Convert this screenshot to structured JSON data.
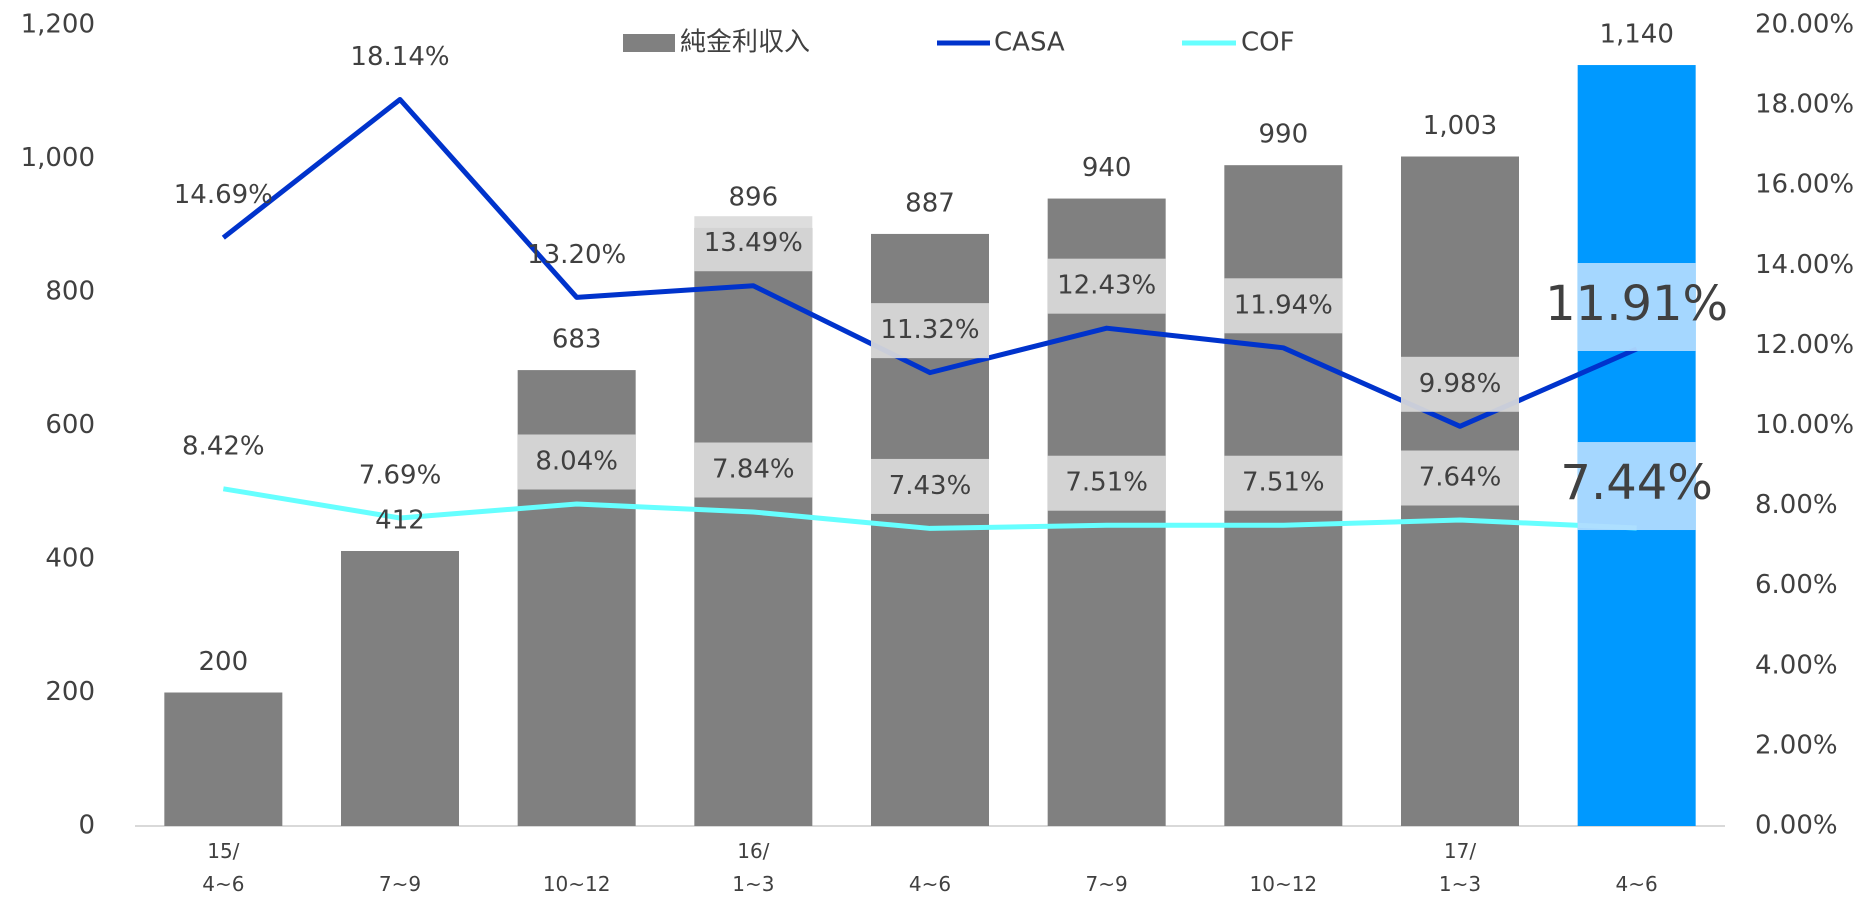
{
  "chart_data": {
    "type": "bar",
    "categories": [
      "15/\n4~6",
      "7~9",
      "10~12",
      "16/\n1~3",
      "4~6",
      "7~9",
      "10~12",
      "17/\n1~3",
      "4~6"
    ],
    "series": [
      {
        "name": "純金利収入",
        "type": "bar",
        "color": "#808080",
        "colors": [
          "#808080",
          "#808080",
          "#808080",
          "#808080",
          "#808080",
          "#808080",
          "#808080",
          "#808080",
          "#0099ff"
        ],
        "values": [
          200,
          412,
          683,
          896,
          887,
          940,
          990,
          1003,
          1140
        ],
        "value_labels": [
          "200",
          "412",
          "683",
          "896",
          "887",
          "940",
          "990",
          "1,003",
          "1,140"
        ]
      },
      {
        "name": "CASA",
        "type": "line",
        "axis": "y2",
        "color": "#0033cc",
        "values": [
          14.69,
          18.14,
          13.2,
          13.49,
          11.32,
          12.43,
          11.94,
          9.98,
          11.91
        ],
        "value_labels": [
          "14.69%",
          "18.14%",
          "13.20%",
          "13.49%",
          "11.32%",
          "12.43%",
          "11.94%",
          "9.98%",
          "11.91%"
        ],
        "label_box": [
          false,
          false,
          false,
          true,
          true,
          true,
          true,
          true,
          true
        ]
      },
      {
        "name": "COF",
        "type": "line",
        "axis": "y2",
        "color": "#66ffff",
        "values": [
          8.42,
          7.69,
          8.04,
          7.84,
          7.43,
          7.51,
          7.51,
          7.64,
          7.44
        ],
        "value_labels": [
          "8.42%",
          "7.69%",
          "8.04%",
          "7.84%",
          "7.43%",
          "7.51%",
          "7.51%",
          "7.64%",
          "7.44%"
        ],
        "label_box": [
          false,
          false,
          true,
          true,
          true,
          true,
          true,
          true,
          true
        ]
      }
    ],
    "ylim": [
      0,
      1200
    ],
    "yticks": [
      0,
      200,
      400,
      600,
      800,
      {
        "value": 1000,
        "label": "1,000"
      },
      {
        "value": 1200,
        "label": "1,200"
      }
    ],
    "y2lim": [
      0,
      20
    ],
    "y2ticks": [
      {
        "value": 0,
        "label": "0.00%"
      },
      {
        "value": 2,
        "label": "2.00%"
      },
      {
        "value": 4,
        "label": "4.00%"
      },
      {
        "value": 6,
        "label": "6.00%"
      },
      {
        "value": 8,
        "label": "8.00%"
      },
      {
        "value": 10,
        "label": "10.00%"
      },
      {
        "value": 12,
        "label": "12.00%"
      },
      {
        "value": 14,
        "label": "14.00%"
      },
      {
        "value": 16,
        "label": "16.00%"
      },
      {
        "value": 18,
        "label": "18.00%"
      },
      {
        "value": 20,
        "label": "20.00%"
      }
    ],
    "legend": "top",
    "grid": false
  }
}
